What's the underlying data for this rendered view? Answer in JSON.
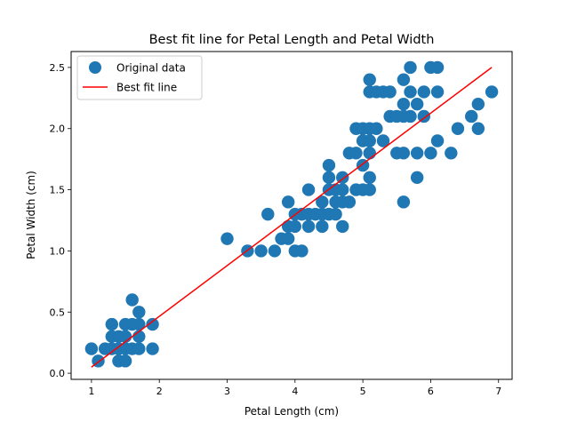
{
  "chart_data": {
    "type": "scatter",
    "title": "Best fit line for Petal Length and Petal Width",
    "xlabel": "Petal Length (cm)",
    "ylabel": "Petal Width (cm)",
    "xlim": [
      0.7,
      7.2
    ],
    "ylim": [
      -0.05,
      2.63
    ],
    "xticks": [
      1,
      2,
      3,
      4,
      5,
      6,
      7
    ],
    "xtick_labels": [
      "1",
      "2",
      "3",
      "4",
      "5",
      "6",
      "7"
    ],
    "yticks": [
      0.0,
      0.5,
      1.0,
      1.5,
      2.0,
      2.5
    ],
    "ytick_labels": [
      "0.0",
      "0.5",
      "1.0",
      "1.5",
      "2.0",
      "2.5"
    ],
    "grid": false,
    "legend_position": "upper-left",
    "colors": {
      "points": "#1f77b4",
      "line": "#ff0000"
    },
    "series": [
      {
        "name": "Original data",
        "kind": "scatter",
        "points": [
          [
            1.0,
            0.2
          ],
          [
            1.1,
            0.1
          ],
          [
            1.2,
            0.2
          ],
          [
            1.3,
            0.2
          ],
          [
            1.3,
            0.3
          ],
          [
            1.3,
            0.4
          ],
          [
            1.4,
            0.1
          ],
          [
            1.4,
            0.2
          ],
          [
            1.4,
            0.3
          ],
          [
            1.5,
            0.1
          ],
          [
            1.5,
            0.2
          ],
          [
            1.5,
            0.3
          ],
          [
            1.5,
            0.4
          ],
          [
            1.6,
            0.2
          ],
          [
            1.6,
            0.4
          ],
          [
            1.6,
            0.6
          ],
          [
            1.7,
            0.2
          ],
          [
            1.7,
            0.3
          ],
          [
            1.7,
            0.4
          ],
          [
            1.7,
            0.5
          ],
          [
            1.9,
            0.2
          ],
          [
            1.9,
            0.4
          ],
          [
            3.0,
            1.1
          ],
          [
            3.3,
            1.0
          ],
          [
            3.5,
            1.0
          ],
          [
            3.6,
            1.3
          ],
          [
            3.7,
            1.0
          ],
          [
            3.8,
            1.1
          ],
          [
            3.9,
            1.1
          ],
          [
            3.9,
            1.2
          ],
          [
            3.9,
            1.4
          ],
          [
            4.0,
            1.0
          ],
          [
            4.0,
            1.2
          ],
          [
            4.0,
            1.3
          ],
          [
            4.1,
            1.0
          ],
          [
            4.1,
            1.3
          ],
          [
            4.2,
            1.2
          ],
          [
            4.2,
            1.3
          ],
          [
            4.2,
            1.5
          ],
          [
            4.3,
            1.3
          ],
          [
            4.4,
            1.2
          ],
          [
            4.4,
            1.3
          ],
          [
            4.4,
            1.4
          ],
          [
            4.5,
            1.3
          ],
          [
            4.5,
            1.5
          ],
          [
            4.5,
            1.6
          ],
          [
            4.5,
            1.7
          ],
          [
            4.6,
            1.3
          ],
          [
            4.6,
            1.4
          ],
          [
            4.6,
            1.5
          ],
          [
            4.7,
            1.2
          ],
          [
            4.7,
            1.4
          ],
          [
            4.7,
            1.5
          ],
          [
            4.7,
            1.6
          ],
          [
            4.8,
            1.4
          ],
          [
            4.8,
            1.8
          ],
          [
            4.9,
            1.5
          ],
          [
            4.9,
            1.8
          ],
          [
            4.9,
            2.0
          ],
          [
            5.0,
            1.5
          ],
          [
            5.0,
            1.7
          ],
          [
            5.0,
            1.9
          ],
          [
            5.0,
            2.0
          ],
          [
            5.1,
            1.5
          ],
          [
            5.1,
            1.6
          ],
          [
            5.1,
            1.8
          ],
          [
            5.1,
            1.9
          ],
          [
            5.1,
            2.0
          ],
          [
            5.1,
            2.3
          ],
          [
            5.1,
            2.4
          ],
          [
            5.2,
            2.0
          ],
          [
            5.2,
            2.3
          ],
          [
            5.3,
            1.9
          ],
          [
            5.3,
            2.3
          ],
          [
            5.4,
            2.1
          ],
          [
            5.4,
            2.3
          ],
          [
            5.5,
            1.8
          ],
          [
            5.5,
            2.1
          ],
          [
            5.6,
            1.4
          ],
          [
            5.6,
            1.8
          ],
          [
            5.6,
            2.1
          ],
          [
            5.6,
            2.2
          ],
          [
            5.6,
            2.4
          ],
          [
            5.7,
            2.1
          ],
          [
            5.7,
            2.3
          ],
          [
            5.7,
            2.5
          ],
          [
            5.8,
            1.6
          ],
          [
            5.8,
            1.8
          ],
          [
            5.8,
            2.2
          ],
          [
            5.9,
            2.1
          ],
          [
            5.9,
            2.3
          ],
          [
            6.0,
            1.8
          ],
          [
            6.0,
            2.5
          ],
          [
            6.1,
            1.9
          ],
          [
            6.1,
            2.3
          ],
          [
            6.1,
            2.5
          ],
          [
            6.3,
            1.8
          ],
          [
            6.4,
            2.0
          ],
          [
            6.6,
            2.1
          ],
          [
            6.7,
            2.0
          ],
          [
            6.7,
            2.2
          ],
          [
            6.9,
            2.3
          ]
        ]
      },
      {
        "name": "Best fit line",
        "kind": "line",
        "points": [
          [
            1.0,
            0.05
          ],
          [
            6.9,
            2.5
          ]
        ]
      }
    ]
  }
}
